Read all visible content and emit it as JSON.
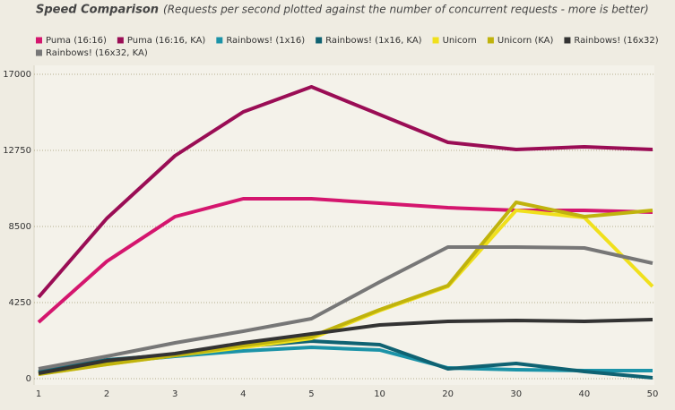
{
  "chart_data": {
    "type": "line",
    "title": "Speed Comparison",
    "subtitle": "(Requests per second plotted against the number of concurrent requests - more is better)",
    "categories": [
      "1",
      "2",
      "3",
      "4",
      "5",
      "10",
      "20",
      "30",
      "40",
      "50"
    ],
    "ylim": [
      -350,
      17500
    ],
    "yticks": [
      0,
      4250,
      8500,
      12750,
      17000
    ],
    "grid": true,
    "series": [
      {
        "name": "Puma (16:16)",
        "color": "#d4166e",
        "values": [
          3150,
          6550,
          9050,
          10050,
          10050,
          9800,
          9550,
          9400,
          9400,
          9300
        ]
      },
      {
        "name": "Puma (16:16, KA)",
        "color": "#9a0d55",
        "values": [
          4550,
          8950,
          12450,
          14900,
          16300,
          14750,
          13200,
          12800,
          12950,
          12800
        ]
      },
      {
        "name": "Rainbows! (1x16)",
        "color": "#1b93a8",
        "values": [
          350,
          900,
          1250,
          1550,
          1750,
          1600,
          600,
          500,
          450,
          450
        ]
      },
      {
        "name": "Rainbows! (1x16, KA)",
        "color": "#0f6272",
        "values": [
          400,
          1050,
          1350,
          1800,
          2100,
          1900,
          550,
          850,
          400,
          50
        ]
      },
      {
        "name": "Unicorn",
        "color": "#f0e01c",
        "values": [
          250,
          800,
          1300,
          1750,
          2250,
          3800,
          5150,
          9400,
          9000,
          5150
        ]
      },
      {
        "name": "Unicorn (KA)",
        "color": "#c0b30d",
        "values": [
          250,
          800,
          1300,
          1850,
          2350,
          3850,
          5200,
          9850,
          9050,
          9400
        ]
      },
      {
        "name": "Rainbows! (16x32)",
        "color": "#333333",
        "values": [
          300,
          1000,
          1400,
          2000,
          2500,
          3000,
          3200,
          3250,
          3200,
          3300
        ]
      },
      {
        "name": "Rainbows! (16x32, KA)",
        "color": "#777777",
        "values": [
          550,
          1250,
          2000,
          2650,
          3350,
          5400,
          7350,
          7350,
          7300,
          6450
        ]
      }
    ]
  }
}
